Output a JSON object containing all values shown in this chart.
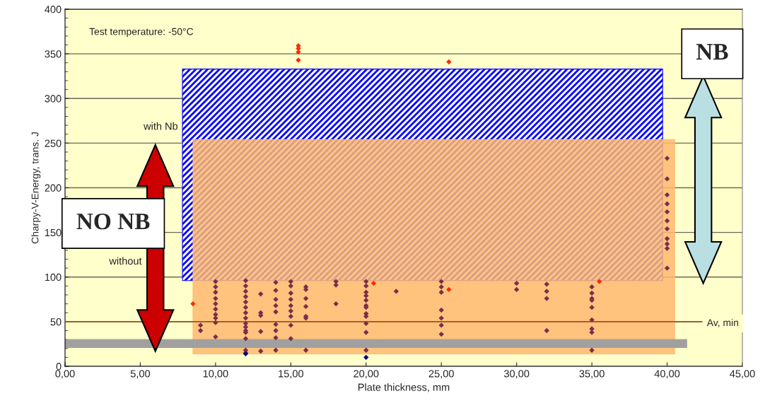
{
  "chart_data": {
    "type": "scatter",
    "xlabel": "Plate thickness, mm",
    "ylabel": "Charpy-V-Energy, trans. J",
    "xlim": [
      0,
      45
    ],
    "ylim": [
      0,
      400
    ],
    "xticks": [
      {
        "value": 0,
        "label": "0,00"
      },
      {
        "value": 5,
        "label": "5,00"
      },
      {
        "value": 10,
        "label": "10,00"
      },
      {
        "value": 15,
        "label": "15,00"
      },
      {
        "value": 20,
        "label": "20,00"
      },
      {
        "value": 25,
        "label": "25,00"
      },
      {
        "value": 30,
        "label": "30,00"
      },
      {
        "value": 35,
        "label": "35,00"
      },
      {
        "value": 40,
        "label": "40,00"
      },
      {
        "value": 45,
        "label": "45,00"
      }
    ],
    "yticks": [
      0,
      50,
      100,
      150,
      200,
      250,
      300,
      350,
      400
    ],
    "grid": "y",
    "series": [
      {
        "type": "area",
        "color": "#0000ff",
        "x": [
          7.8,
          39.7
        ],
        "values": [
          null,
          null
        ],
        "lower": [
          96,
          96
        ],
        "upper": [
          333,
          333
        ]
      },
      {
        "type": "area",
        "color": "#ffb870",
        "x": [
          8.5,
          40.5
        ],
        "values": [
          null,
          null
        ],
        "lower": [
          14,
          14
        ],
        "upper": [
          254,
          254
        ]
      },
      {
        "type": "area",
        "color": "#a0a0a0",
        "x": [
          0,
          41.3
        ],
        "values": [
          null,
          null
        ],
        "lower": [
          21,
          21
        ],
        "upper": [
          30,
          30
        ]
      },
      {
        "marker": "diamond",
        "color": "#7b2d4a",
        "x": [
          9,
          9,
          10,
          10,
          10,
          10,
          10,
          10,
          10,
          10,
          10,
          10,
          12,
          12,
          12,
          12,
          12,
          12,
          12,
          12,
          12,
          12,
          12,
          12,
          12,
          12,
          12,
          13,
          13,
          13,
          13,
          13,
          14,
          14,
          14,
          14,
          14,
          14,
          14,
          14,
          14,
          15,
          15,
          15,
          15,
          15,
          15,
          15,
          15,
          15,
          16,
          16,
          16,
          16,
          16,
          16,
          16,
          18,
          18,
          18,
          20,
          20,
          20,
          20,
          20,
          20,
          20,
          20,
          20,
          20,
          20,
          20,
          22,
          25,
          25,
          25,
          25,
          25,
          25,
          25,
          30,
          30,
          32,
          32,
          32,
          32,
          35,
          35,
          35,
          35,
          35,
          35,
          35,
          35,
          35,
          40,
          40,
          40,
          40,
          40,
          40,
          40,
          40,
          40,
          40,
          40
        ],
        "values": [
          46,
          40,
          95,
          89,
          83,
          76,
          70,
          64,
          58,
          54,
          49,
          33,
          96,
          90,
          84,
          78,
          72,
          66,
          60,
          54,
          48,
          44,
          40,
          38,
          31,
          18,
          15,
          81,
          60,
          57,
          39,
          17,
          94,
          85,
          75,
          68,
          61,
          47,
          40,
          32,
          18,
          95,
          90,
          82,
          75,
          68,
          62,
          56,
          46,
          31,
          89,
          86,
          76,
          67,
          56,
          54,
          18,
          95,
          91,
          70,
          95,
          90,
          83,
          79,
          74,
          68,
          66,
          59,
          56,
          48,
          38,
          18,
          84,
          95,
          89,
          83,
          63,
          54,
          46,
          36,
          93,
          86,
          92,
          84,
          76,
          40,
          89,
          82,
          76,
          74,
          66,
          52,
          42,
          38,
          18,
          233,
          210,
          192,
          182,
          173,
          163,
          154,
          143,
          137,
          132,
          110
        ]
      },
      {
        "marker": "diamond",
        "color": "#ff2a00",
        "x": [
          8.5,
          15.5,
          15.5,
          15.5,
          15.5,
          20.5,
          25.5,
          25.5,
          35.5
        ],
        "values": [
          70,
          359,
          356,
          352,
          343,
          93,
          341,
          86,
          95
        ]
      },
      {
        "marker": "diamond",
        "color": "#000080",
        "x": [
          12,
          20
        ],
        "values": [
          14,
          10
        ]
      }
    ],
    "ref_lines": [
      {
        "axis": "y",
        "value": 50,
        "label": "Av, min"
      }
    ],
    "annotations": [
      "Test temperature: -50°C",
      "with Nb",
      "without",
      "NO NB",
      "NB"
    ]
  }
}
